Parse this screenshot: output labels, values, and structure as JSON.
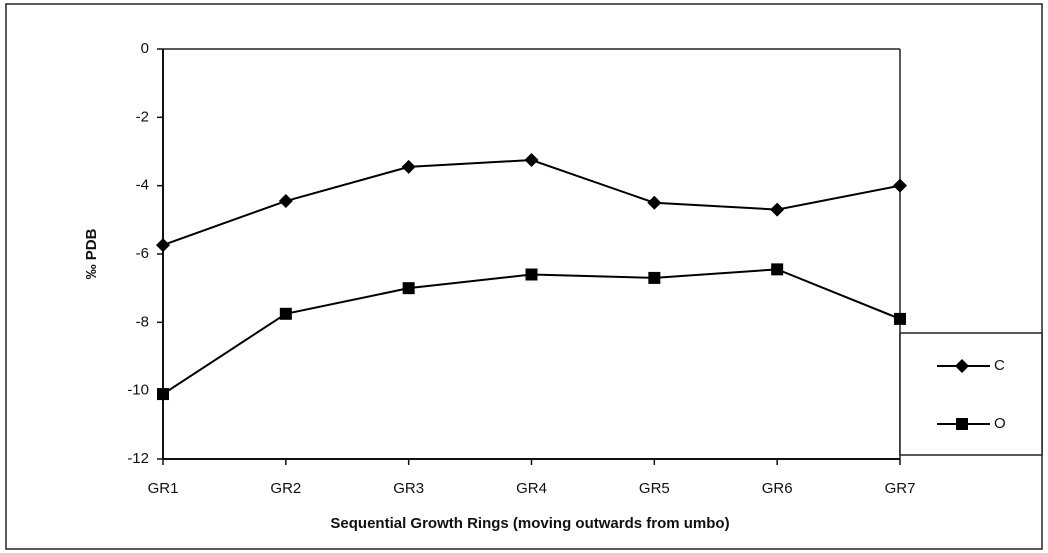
{
  "chart_data": {
    "type": "line",
    "categories": [
      "GR1",
      "GR2",
      "GR3",
      "GR4",
      "GR5",
      "GR6",
      "GR7"
    ],
    "series": [
      {
        "name": "C",
        "color": "#000000",
        "marker": "diamond",
        "values": [
          -5.74,
          -4.45,
          -3.45,
          -3.25,
          -4.5,
          -4.7,
          -4.0
        ]
      },
      {
        "name": "O",
        "color": "#000000",
        "marker": "square",
        "values": [
          -10.1,
          -7.75,
          -7.0,
          -6.6,
          -6.7,
          -6.45,
          -7.9
        ]
      }
    ],
    "ylim": [
      -12,
      0
    ],
    "yticks": [
      0,
      -2,
      -4,
      -6,
      -8,
      -10,
      -12
    ],
    "y_label": "‰ PDB",
    "x_label": "Sequential Growth Rings (moving outwards from umbo)",
    "grid": false
  }
}
